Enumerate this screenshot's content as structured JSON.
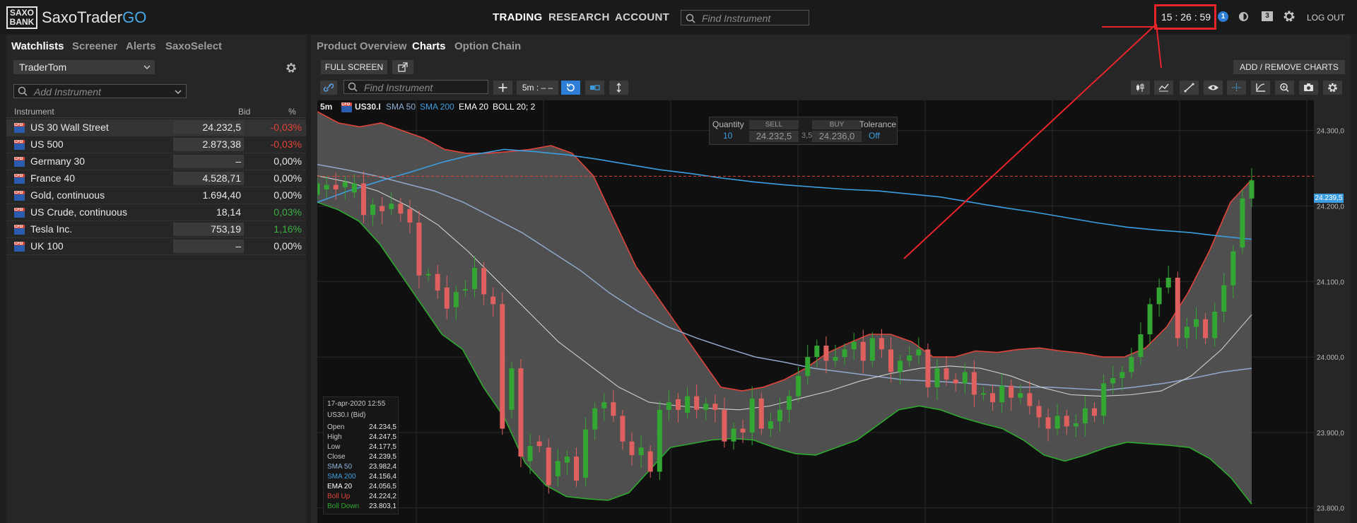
{
  "header": {
    "logo_line1": "SAXO",
    "logo_line2": "BANK",
    "brand_main": "SaxoTrader",
    "brand_go": "GO",
    "nav": [
      "TRADING",
      "RESEARCH",
      "ACCOUNT"
    ],
    "search_placeholder": "Find Instrument",
    "clock": "15 : 26 : 59",
    "notification_count": "1",
    "messages_count": "3",
    "logout": "LOG OUT"
  },
  "left": {
    "tabs": [
      "Watchlists",
      "Screener",
      "Alerts",
      "SaxoSelect"
    ],
    "watchlist_name": "TraderTom",
    "add_placeholder": "Add Instrument",
    "columns": [
      "Instrument",
      "Bid",
      "%"
    ],
    "rows": [
      {
        "name": "US 30 Wall Street",
        "bid": "24.232,5",
        "pct": "-0,03%",
        "pct_color": "#e0443a",
        "bid_bg": true
      },
      {
        "name": "US 500",
        "bid": "2.873,38",
        "pct": "-0,03%",
        "pct_color": "#e0443a",
        "bid_bg": true
      },
      {
        "name": "Germany 30",
        "bid": "–",
        "pct": "0,00%",
        "pct_color": "#e8e8e8",
        "bid_bg": true
      },
      {
        "name": "France 40",
        "bid": "4.528,71",
        "pct": "0,00%",
        "pct_color": "#e8e8e8",
        "bid_bg": true
      },
      {
        "name": "Gold, continuous",
        "bid": "1.694,40",
        "pct": "0,00%",
        "pct_color": "#e8e8e8",
        "bid_bg": false
      },
      {
        "name": "US Crude, continuous",
        "bid": "18,14",
        "pct": "0,03%",
        "pct_color": "#3cb043",
        "bid_bg": false
      },
      {
        "name": "Tesla Inc.",
        "bid": "753,19",
        "pct": "1,16%",
        "pct_color": "#3cb043",
        "bid_bg": true
      },
      {
        "name": "UK 100",
        "bid": "–",
        "pct": "0,00%",
        "pct_color": "#e8e8e8",
        "bid_bg": true
      }
    ]
  },
  "main": {
    "tabs": [
      "Product Overview",
      "Charts",
      "Option Chain"
    ],
    "full_screen": "FULL SCREEN",
    "add_remove": "ADD / REMOVE CHARTS",
    "find_placeholder": "Find Instrument",
    "interval": "5m : – –",
    "legend": {
      "timeframe": "5m",
      "symbol": "US30.I",
      "sma50": "SMA 50",
      "sma200": "SMA 200",
      "ema20": "EMA 20",
      "boll": "BOLL 20; 2"
    },
    "trade_box": {
      "quantity_label": "Quantity",
      "quantity": "10",
      "sell_label": "SELL",
      "sell": "24.232,5",
      "spread": "3,5",
      "buy_label": "BUY",
      "buy": "24.236,0",
      "tolerance_label": "Tolerance",
      "tolerance": "Off"
    },
    "tooltip": {
      "date": "17-apr-2020 12:55",
      "instrument": "US30.I (Bid)",
      "rows": [
        {
          "label": "Open",
          "value": "24.234,5",
          "color": "#c8c8c8"
        },
        {
          "label": "High",
          "value": "24.247,5",
          "color": "#c8c8c8"
        },
        {
          "label": "Low",
          "value": "24.177,5",
          "color": "#c8c8c8"
        },
        {
          "label": "Close",
          "value": "24.239,5",
          "color": "#c8c8c8"
        },
        {
          "label": "SMA 50",
          "value": "23.982,4",
          "color": "#8fb0d8"
        },
        {
          "label": "SMA 200",
          "value": "24.156,4",
          "color": "#3c9ee0"
        },
        {
          "label": "EMA 20",
          "value": "24.056,5",
          "color": "#ffffff"
        },
        {
          "label": "Boll Up",
          "value": "24.224,2",
          "color": "#e0443a"
        },
        {
          "label": "Boll Down",
          "value": "23.803,1",
          "color": "#2ea82e"
        }
      ]
    },
    "current_price": "24.239,5"
  },
  "chart_data": {
    "type": "line",
    "title": "",
    "ylim": [
      23780,
      24340
    ],
    "yticks": [
      "24.300,0",
      "24.200,0",
      "24.100,0",
      "24.000,0",
      "23.900,0",
      "23.800,0"
    ],
    "ytick_values": [
      24300,
      24200,
      24100,
      24000,
      23900,
      23800
    ],
    "current_line": 24239.5,
    "candles_oc": [
      [
        24215,
        24230
      ],
      [
        24222,
        24228
      ],
      [
        24228,
        24222
      ],
      [
        24225,
        24232
      ],
      [
        24218,
        24230
      ],
      [
        24230,
        24188
      ],
      [
        24188,
        24202
      ],
      [
        24200,
        24193
      ],
      [
        24196,
        24203
      ],
      [
        24203,
        24190
      ],
      [
        24196,
        24178
      ],
      [
        24178,
        24108
      ],
      [
        24108,
        24110
      ],
      [
        24110,
        24088
      ],
      [
        24092,
        24064
      ],
      [
        24066,
        24086
      ],
      [
        24088,
        24090
      ],
      [
        24090,
        24118
      ],
      [
        24118,
        24083
      ],
      [
        24080,
        24070
      ],
      [
        24070,
        23905
      ],
      [
        23930,
        23985
      ],
      [
        23985,
        23868
      ],
      [
        23862,
        23882
      ],
      [
        23888,
        23882
      ],
      [
        23880,
        23830
      ],
      [
        23842,
        23862
      ],
      [
        23860,
        23868
      ],
      [
        23868,
        23836
      ],
      [
        23840,
        23904
      ],
      [
        23904,
        23932
      ],
      [
        23932,
        23940
      ],
      [
        23940,
        23922
      ],
      [
        23922,
        23888
      ],
      [
        23888,
        23870
      ],
      [
        23870,
        23880
      ],
      [
        23875,
        23848
      ],
      [
        23848,
        23930
      ],
      [
        23930,
        23940
      ],
      [
        23944,
        23930
      ],
      [
        23926,
        23948
      ],
      [
        23948,
        23930
      ],
      [
        23930,
        23938
      ],
      [
        23938,
        23930
      ],
      [
        23930,
        23888
      ],
      [
        23888,
        23905
      ],
      [
        23905,
        23900
      ],
      [
        23900,
        23945
      ],
      [
        23945,
        23905
      ],
      [
        23905,
        23915
      ],
      [
        23915,
        23930
      ],
      [
        23930,
        23948
      ],
      [
        23948,
        23975
      ],
      [
        23975,
        24000
      ],
      [
        24000,
        24015
      ],
      [
        24015,
        23995
      ],
      [
        23995,
        24000
      ],
      [
        24000,
        24010
      ],
      [
        24010,
        24020
      ],
      [
        24020,
        23995
      ],
      [
        23995,
        24025
      ],
      [
        24025,
        24010
      ],
      [
        24010,
        23980
      ],
      [
        23980,
        23995
      ],
      [
        23995,
        24002
      ],
      [
        24002,
        24010
      ],
      [
        24010,
        23960
      ],
      [
        23960,
        23985
      ],
      [
        23985,
        23970
      ],
      [
        23970,
        23965
      ],
      [
        23965,
        23980
      ],
      [
        23980,
        23950
      ],
      [
        23950,
        23952
      ],
      [
        23952,
        23940
      ],
      [
        23940,
        23962
      ],
      [
        23962,
        23946
      ],
      [
        23946,
        23952
      ],
      [
        23952,
        23935
      ],
      [
        23935,
        23920
      ],
      [
        23920,
        23905
      ],
      [
        23905,
        23922
      ],
      [
        23922,
        23908
      ],
      [
        23908,
        23912
      ],
      [
        23912,
        23932
      ],
      [
        23932,
        23922
      ],
      [
        23922,
        23965
      ],
      [
        23965,
        23972
      ],
      [
        23972,
        23980
      ],
      [
        23980,
        24000
      ],
      [
        24000,
        24030
      ],
      [
        24030,
        24070
      ],
      [
        24070,
        24092
      ],
      [
        24092,
        24105
      ],
      [
        24105,
        24025
      ],
      [
        24025,
        24040
      ],
      [
        24040,
        24050
      ],
      [
        24050,
        24025
      ],
      [
        24025,
        24060
      ],
      [
        24060,
        24095
      ],
      [
        24095,
        24140
      ],
      [
        24145,
        24210
      ],
      [
        24210,
        24234
      ]
    ],
    "boll_up": [
      24325,
      24310,
      24305,
      24310,
      24300,
      24290,
      24275,
      24270,
      24270,
      24272,
      24275,
      24280,
      24270,
      24240,
      24180,
      24120,
      24080,
      24040,
      24000,
      23960,
      23955,
      23960,
      23970,
      23985,
      24005,
      24018,
      24030,
      24030,
      24020,
      24000,
      24000,
      24008,
      24006,
      24010,
      24012,
      24008,
      24005,
      24000,
      24000,
      24012,
      24040,
      24085,
      24140,
      24205,
      24235
    ],
    "boll_down": [
      24205,
      24195,
      24180,
      24150,
      24110,
      24070,
      24030,
      24010,
      23960,
      23920,
      23860,
      23830,
      23815,
      23812,
      23810,
      23820,
      23850,
      23880,
      23885,
      23890,
      23892,
      23890,
      23880,
      23872,
      23870,
      23880,
      23890,
      23910,
      23930,
      23935,
      23930,
      23920,
      23912,
      23905,
      23890,
      23870,
      23862,
      23870,
      23880,
      23887,
      23885,
      23883,
      23880,
      23865,
      23840,
      23805
    ],
    "sma50": [
      24255,
      24248,
      24240,
      24230,
      24220,
      24205,
      24185,
      24165,
      24140,
      24115,
      24085,
      24060,
      24040,
      24025,
      24012,
      24000,
      23993,
      23985,
      23980,
      23975,
      23970,
      23968,
      23966,
      23963,
      23960,
      23960,
      23958,
      23956,
      23960,
      23965,
      23972,
      23980,
      23985
    ],
    "sma200": [
      24205,
      24220,
      24233,
      24245,
      24258,
      24268,
      24275,
      24272,
      24268,
      24262,
      24255,
      24248,
      24243,
      24237,
      24232,
      24228,
      24225,
      24222,
      24220,
      24216,
      24212,
      24205,
      24198,
      24192,
      24185,
      24178,
      24172,
      24168,
      24165,
      24160,
      24156
    ],
    "ema20": [
      24240,
      24232,
      24220,
      24200,
      24175,
      24140,
      24100,
      24060,
      24020,
      23990,
      23960,
      23940,
      23935,
      23932,
      23930,
      23935,
      23945,
      23955,
      23968,
      23978,
      23985,
      23988,
      23985,
      23975,
      23960,
      23950,
      23948,
      23950,
      23955,
      23975,
      24010,
      24056
    ]
  }
}
